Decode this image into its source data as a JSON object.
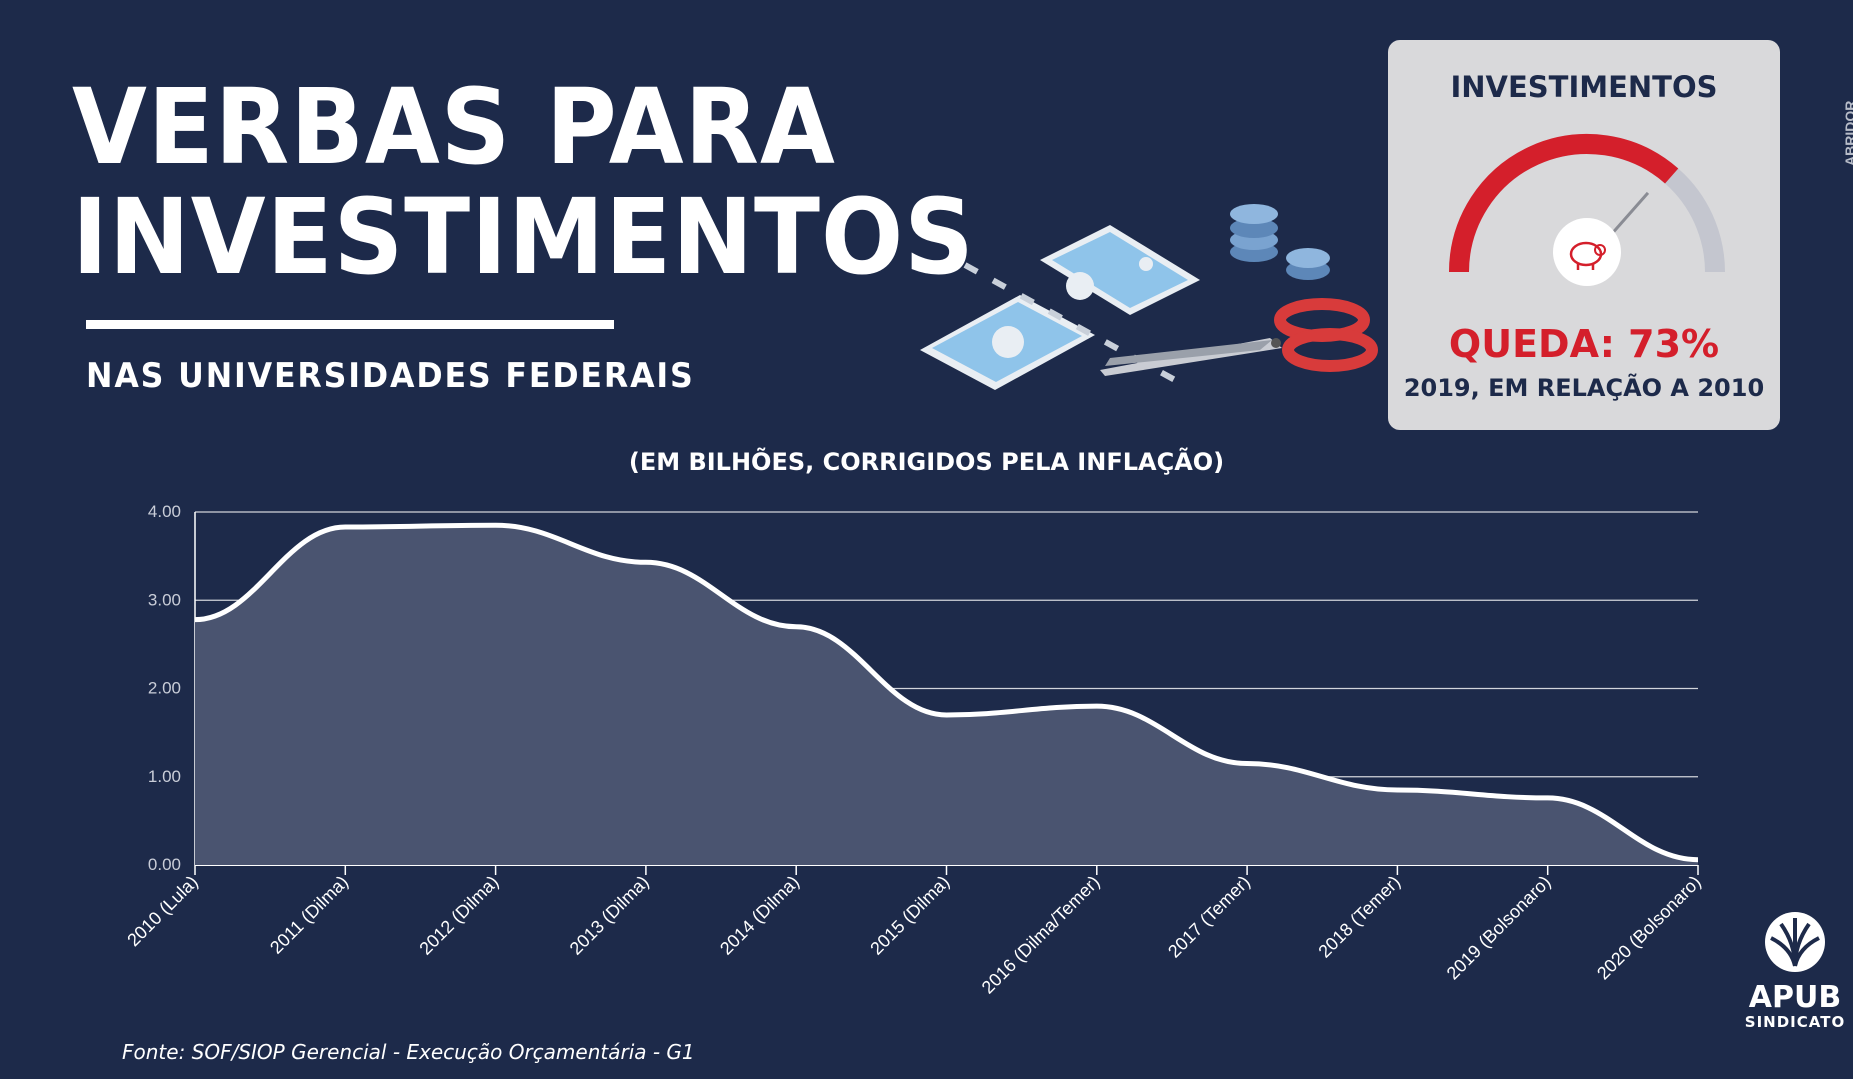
{
  "header": {
    "title_line1": "VERBAS PARA",
    "title_line2": "INVESTIMENTOS",
    "subtitle": "NAS UNIVERSIDADES FEDERAIS"
  },
  "card": {
    "title": "INVESTIMENTOS",
    "drop": "QUEDA: 73%",
    "note": "2019, EM RELAÇÃO A 2010",
    "gauge_fraction": 0.73,
    "gauge_color": "#d41f2b",
    "gauge_track_color": "#c4c6cf",
    "icon": "piggy-bank-icon"
  },
  "side_text": "ABRIDOR",
  "chart_data": {
    "type": "area",
    "subtitle": "(EM BILHÕES, CORRIGIDOS PELA INFLAÇÃO)",
    "categories": [
      "2010 (Lula)",
      "2011 (Dilma)",
      "2012 (Dilma)",
      "2013 (Dilma)",
      "2014 (Dilma)",
      "2015 (Dilma)",
      "2016 (Dilma/Temer)",
      "2017 (Temer)",
      "2018 (Temer)",
      "2019 (Bolsonaro)",
      "2020 (Bolsonaro)"
    ],
    "values": [
      2.78,
      3.83,
      3.85,
      3.43,
      2.7,
      1.7,
      1.8,
      1.15,
      0.85,
      0.76,
      0.06
    ],
    "yticks": [
      "0.00",
      "1.00",
      "2.00",
      "3.00",
      "4.00"
    ],
    "ylim": [
      0,
      4
    ],
    "grid": true,
    "fill_color": "#4a5470",
    "line_color": "#ffffff"
  },
  "source": "Fonte: SOF/SIOP Gerencial - Execução Orçamentária - G1",
  "logo": {
    "name": "APUB",
    "sub": "SINDICATO"
  }
}
